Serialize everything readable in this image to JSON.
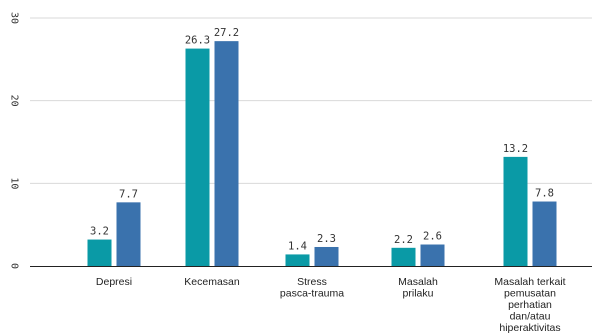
{
  "chart_data": {
    "type": "bar",
    "categories": [
      [
        "Depresi"
      ],
      [
        "Kecemasan"
      ],
      [
        "Stress",
        "pasca-trauma"
      ],
      [
        "Masalah",
        "prilaku"
      ],
      [
        "Masalah terkait",
        "pemusatan",
        "perhatian",
        "dan/atau",
        "hiperaktivitas"
      ]
    ],
    "series": [
      {
        "color": "#0a9aa6",
        "values": [
          3.2,
          26.3,
          1.4,
          2.2,
          13.2
        ]
      },
      {
        "color": "#3a72ad",
        "values": [
          7.7,
          27.2,
          2.3,
          2.6,
          7.8
        ]
      }
    ],
    "ylim": [
      0,
      30
    ],
    "yticks": [
      "0",
      "10",
      "20",
      "30"
    ],
    "grid": true,
    "legend": "none"
  }
}
